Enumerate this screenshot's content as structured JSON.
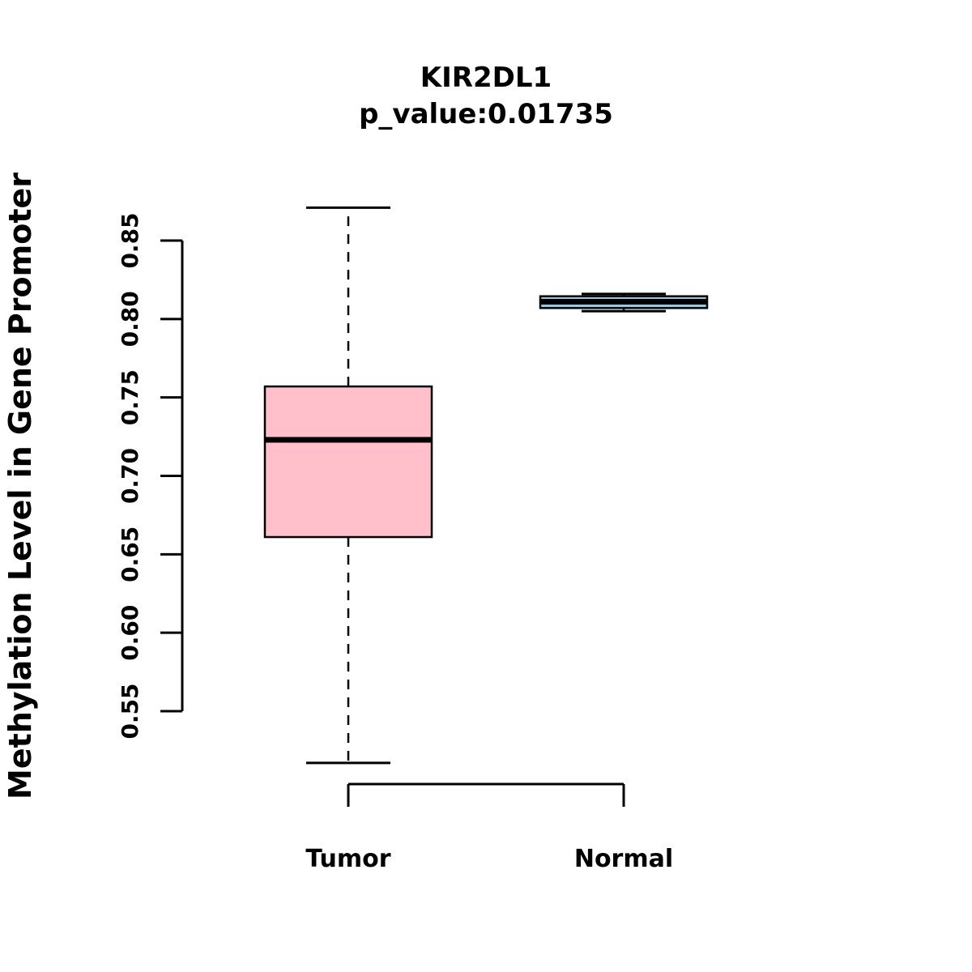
{
  "title": "KIR2DL1",
  "subtitle": "p_value:0.01735",
  "chart_data": {
    "type": "boxplot",
    "title": "KIR2DL1",
    "subtitle": "p_value:0.01735",
    "ylabel": "Methylation Level in Gene Promoter",
    "xlabel": "",
    "categories": [
      "Tumor",
      "Normal"
    ],
    "ylim": [
      0.55,
      0.85
    ],
    "yticks": [
      0.55,
      0.6,
      0.65,
      0.7,
      0.75,
      0.8,
      0.85
    ],
    "grid": false,
    "legend": "none",
    "series": [
      {
        "name": "Tumor",
        "color": "#FFC0CB",
        "whisker_low": 0.517,
        "q1": 0.661,
        "median": 0.723,
        "q3": 0.757,
        "whisker_high": 0.871
      },
      {
        "name": "Normal",
        "color": "#87CEEB",
        "whisker_low": 0.805,
        "q1": 0.807,
        "median": 0.811,
        "q3": 0.8145,
        "whisker_high": 0.816
      }
    ]
  },
  "colors": {
    "tumor_fill": "#FFC0CB",
    "normal_fill": "#87CEEB",
    "axis": "#000000",
    "background": "#FFFFFF"
  }
}
